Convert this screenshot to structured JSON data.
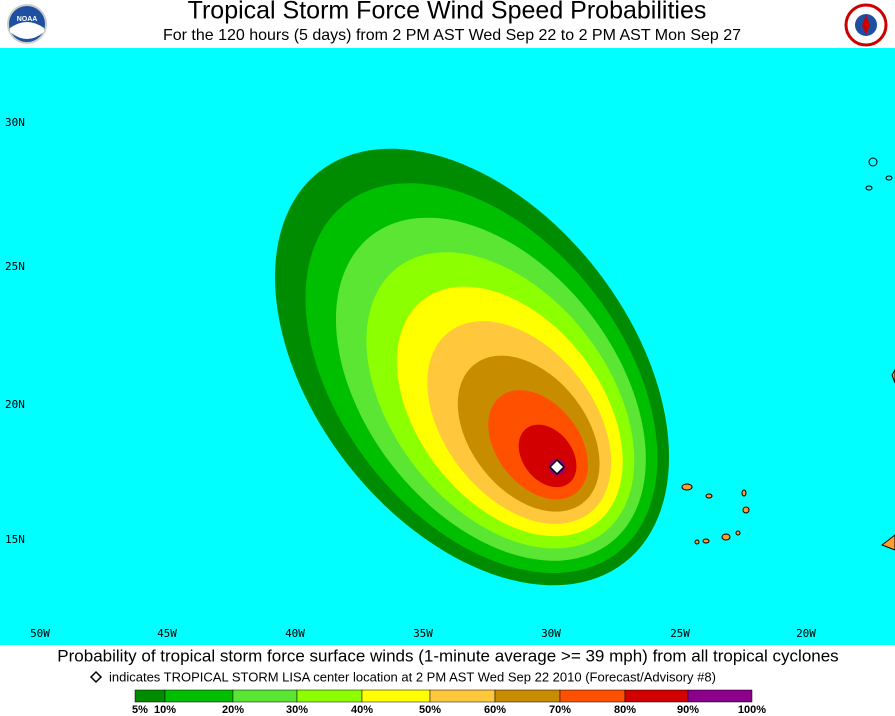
{
  "header": {
    "title": "Tropical Storm Force Wind Speed Probabilities",
    "subtitle": "For the 120 hours (5 days) from 2 PM AST Wed Sep 22 to 2 PM AST Mon Sep 27",
    "left_logo": "NOAA"
  },
  "map": {
    "latitudes": [
      "30N",
      "25N",
      "20N",
      "15N"
    ],
    "longitudes": [
      "50W",
      "45W",
      "40W",
      "35W",
      "30W",
      "25W",
      "20W"
    ]
  },
  "footer": {
    "caption": "Probability of tropical storm force surface winds (1-minute average >= 39 mph) from all tropical cyclones",
    "note": "indicates TROPICAL STORM LISA center location at 2 PM AST Wed Sep 22 2010 (Forecast/Advisory #8)"
  },
  "legend": {
    "labels": [
      "5%",
      "10%",
      "20%",
      "30%",
      "40%",
      "50%",
      "60%",
      "70%",
      "80%",
      "90%",
      "100%"
    ],
    "colors": [
      "#008c00",
      "#00be00",
      "#5ae632",
      "#8cff00",
      "#ffff00",
      "#ffc83c",
      "#c88c00",
      "#ff5000",
      "#d20000",
      "#8c008c"
    ]
  }
}
